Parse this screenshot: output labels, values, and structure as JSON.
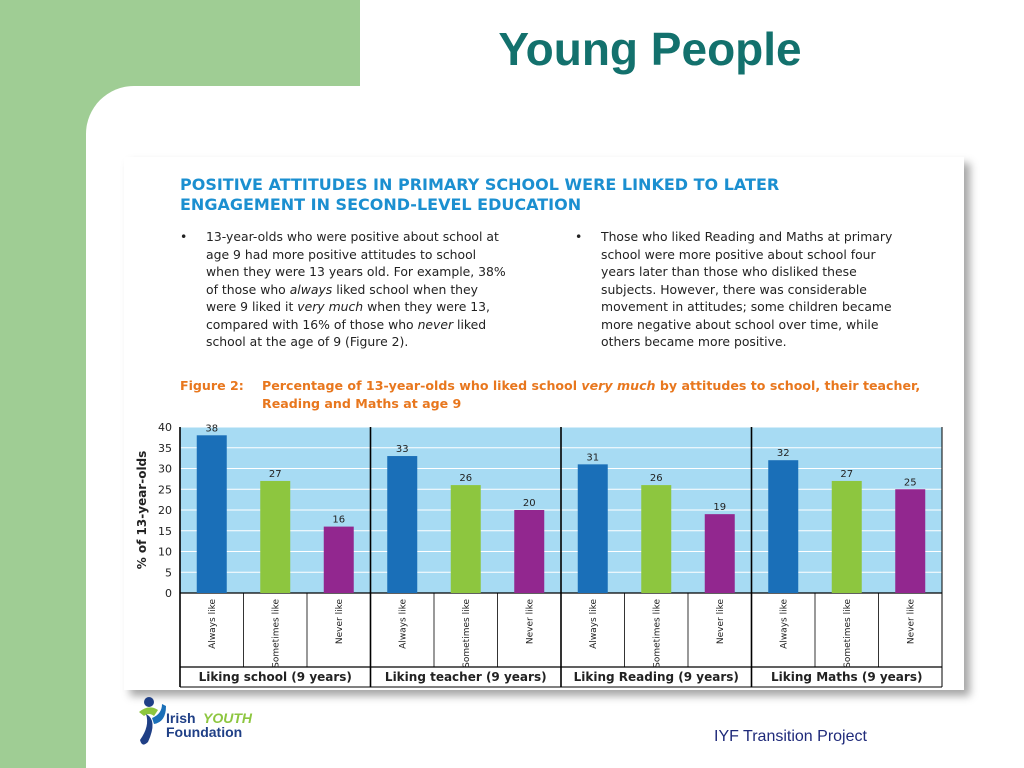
{
  "slide": {
    "title": "Young People",
    "footer": "IYF Transition Project",
    "logo": {
      "line1_a": "Irish",
      "line1_b": "YOUTH",
      "line2": "Foundation"
    }
  },
  "figure": {
    "heading_line1": "POSITIVE ATTITUDES IN PRIMARY SCHOOL WERE LINKED TO LATER",
    "heading_line2": "ENGAGEMENT IN SECOND-LEVEL EDUCATION",
    "bullet_marker": "•",
    "bullet_left": [
      "13-year-olds who were positive about school at",
      "age 9 had more positive attitudes to school",
      "when they were 13 years old. For example, 38%",
      "of those who ",
      "always",
      " liked school when they",
      "were 9 liked it ",
      "very much",
      " when they were 13,",
      "compared with 16% of those who ",
      "never",
      " liked",
      "school at the age of 9 (Figure 2)."
    ],
    "bullet_right": [
      "Those who liked Reading and Maths at primary",
      "school were more positive about school four",
      "years later than those who disliked these",
      "subjects. However, there was considerable",
      "movement in attitudes; some children became",
      "more negative about school over time, while",
      "others became more positive."
    ],
    "caption_label": "Figure 2:",
    "caption_part1": "Percentage of 13-year-olds who liked school ",
    "caption_em": "very much",
    "caption_part2": " by attitudes to school, their teacher,",
    "caption_line2": "Reading and Maths at age 9"
  },
  "chart_data": {
    "type": "bar",
    "ylabel": "% of 13-year-olds",
    "ylim": [
      0,
      40
    ],
    "yticks": [
      0,
      5,
      10,
      15,
      20,
      25,
      30,
      35,
      40
    ],
    "grid": true,
    "categories": [
      "Always like",
      "Sometimes like",
      "Never like"
    ],
    "groups": [
      {
        "name": "Liking school (9 years)",
        "values": [
          38,
          27,
          16
        ]
      },
      {
        "name": "Liking teacher (9 years)",
        "values": [
          33,
          26,
          20
        ]
      },
      {
        "name": "Liking Reading (9 years)",
        "values": [
          31,
          26,
          19
        ]
      },
      {
        "name": "Liking Maths (9 years)",
        "values": [
          32,
          27,
          25
        ]
      }
    ],
    "colors": {
      "Always like": "#1a6fb8",
      "Sometimes like": "#8dc63f",
      "Never like": "#92278f",
      "plot_bg": "#a7dbf3"
    }
  }
}
